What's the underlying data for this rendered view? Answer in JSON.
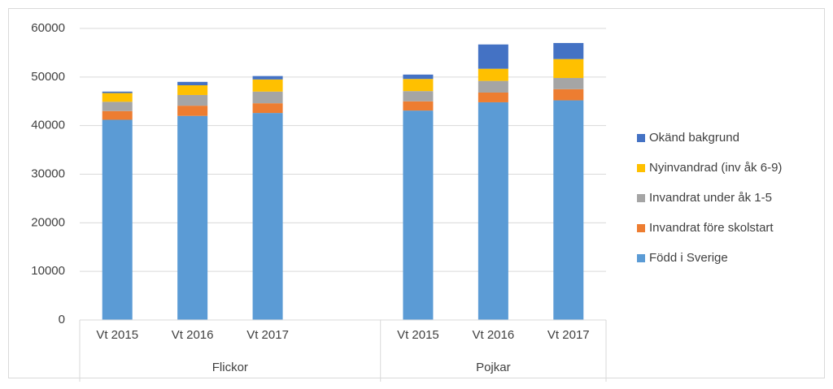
{
  "chart_data": {
    "type": "stacked_bar",
    "categories": [
      "Vt 2015",
      "Vt 2016",
      "Vt 2017",
      null,
      "Vt 2015",
      "Vt 2016",
      "Vt 2017"
    ],
    "groups": [
      {
        "name": "Flickor",
        "size": 4
      },
      {
        "name": "Pojkar",
        "size": 3
      }
    ],
    "series": [
      {
        "name": "Född i Sverige",
        "color": "#5b9bd5",
        "values": [
          41200,
          42000,
          42600,
          null,
          43100,
          44800,
          45200
        ]
      },
      {
        "name": "Invandrat före skolstart",
        "color": "#ed7d31",
        "values": [
          1800,
          2100,
          2000,
          null,
          1900,
          2000,
          2300
        ]
      },
      {
        "name": "Invandrat under åk 1-5",
        "color": "#a5a5a5",
        "values": [
          1900,
          2200,
          2400,
          null,
          2100,
          2400,
          2300
        ]
      },
      {
        "name": "Nyinvandrad (inv åk 6-9)",
        "color": "#ffc000",
        "values": [
          1800,
          2000,
          2500,
          null,
          2500,
          2500,
          3900
        ]
      },
      {
        "name": "Okänd bakgrund",
        "color": "#4472c4",
        "values": [
          300,
          700,
          700,
          null,
          900,
          5000,
          3300
        ]
      }
    ],
    "ylim": [
      0,
      60000
    ],
    "yticks": [
      0,
      10000,
      20000,
      30000,
      40000,
      50000,
      60000
    ],
    "grid": true,
    "legend": "right"
  }
}
